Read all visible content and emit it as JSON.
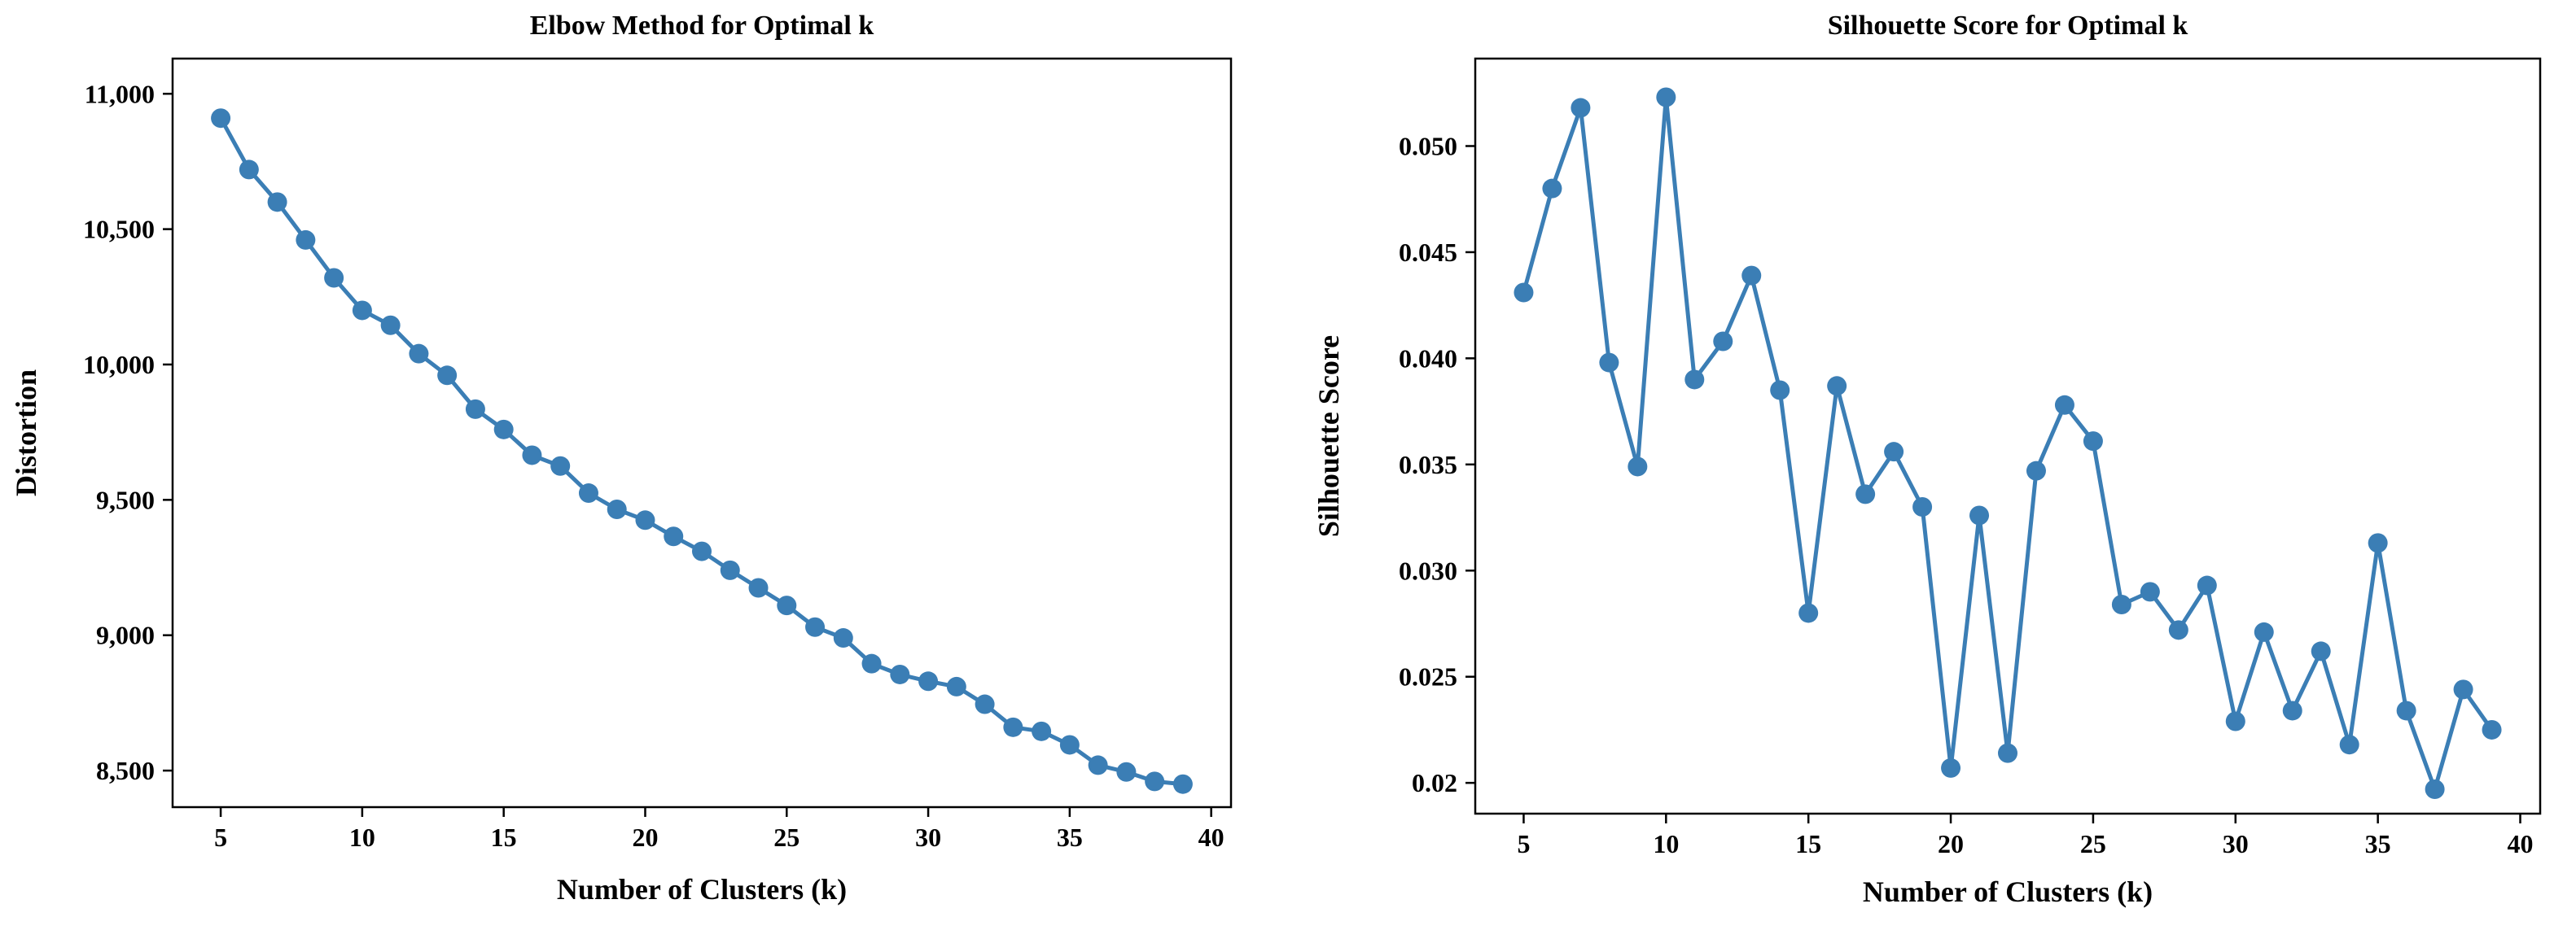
{
  "colors": {
    "series": "#3b7eb5",
    "axis": "#000000",
    "background": "#ffffff"
  },
  "chart_data": [
    {
      "type": "line",
      "title": "Elbow Method for Optimal k",
      "xlabel": "Number of Clusters (k)",
      "ylabel": "Distortion",
      "xlim": [
        3.3,
        40.7
      ],
      "ylim": [
        8365,
        11130
      ],
      "xticks": [
        5,
        10,
        15,
        20,
        25,
        30,
        35,
        40
      ],
      "xtick_labels": [
        "5",
        "10",
        "15",
        "20",
        "25",
        "30",
        "35",
        "40"
      ],
      "yticks": [
        8500,
        9000,
        9500,
        10000,
        10500,
        11000
      ],
      "ytick_labels": [
        "8,500",
        "9,000",
        "9,500",
        "10,000",
        "10,500",
        "11,000"
      ],
      "grid": false,
      "series": [
        {
          "name": "Distortion",
          "x": [
            5,
            6,
            7,
            8,
            9,
            10,
            11,
            12,
            13,
            14,
            15,
            16,
            17,
            18,
            19,
            20,
            21,
            22,
            23,
            24,
            25,
            26,
            27,
            28,
            29,
            30,
            31,
            32,
            33,
            34,
            35,
            36,
            37,
            38,
            39
          ],
          "values": [
            10910,
            10720,
            10600,
            10460,
            10320,
            10200,
            10145,
            10040,
            9960,
            9835,
            9760,
            9665,
            9625,
            9525,
            9465,
            9425,
            9365,
            9310,
            9240,
            9175,
            9110,
            9030,
            8990,
            8895,
            8855,
            8830,
            8810,
            8745,
            8660,
            8645,
            8595,
            8520,
            8495,
            8460,
            8450
          ]
        }
      ]
    },
    {
      "type": "line",
      "title": "Silhouette Score for Optimal k",
      "xlabel": "Number of Clusters (k)",
      "ylabel": "Silhouette Score",
      "xlim": [
        3.3,
        40.7
      ],
      "ylim": [
        0.01855,
        0.05412
      ],
      "xticks": [
        5,
        10,
        15,
        20,
        25,
        30,
        35,
        40
      ],
      "xtick_labels": [
        "5",
        "10",
        "15",
        "20",
        "25",
        "30",
        "35",
        "40"
      ],
      "yticks": [
        0.02,
        0.025,
        0.03,
        0.035,
        0.04,
        0.045,
        0.05
      ],
      "ytick_labels": [
        "0.02",
        "0.025",
        "0.030",
        "0.035",
        "0.040",
        "0.045",
        "0.050"
      ],
      "grid": false,
      "series": [
        {
          "name": "Silhouette Score",
          "x": [
            5,
            6,
            7,
            8,
            9,
            10,
            11,
            12,
            13,
            14,
            15,
            16,
            17,
            18,
            19,
            20,
            21,
            22,
            23,
            24,
            25,
            26,
            27,
            28,
            29,
            30,
            31,
            32,
            33,
            34,
            35,
            36,
            37,
            38,
            39
          ],
          "values": [
            0.0431,
            0.048,
            0.0518,
            0.0398,
            0.0349,
            0.0523,
            0.039,
            0.0408,
            0.0439,
            0.0385,
            0.028,
            0.0387,
            0.0336,
            0.0356,
            0.033,
            0.0207,
            0.0326,
            0.0214,
            0.0347,
            0.0378,
            0.0361,
            0.0284,
            0.029,
            0.0272,
            0.0293,
            0.0229,
            0.0271,
            0.0234,
            0.0262,
            0.0218,
            0.0313,
            0.0234,
            0.0197,
            0.0244,
            0.0225
          ]
        }
      ]
    }
  ]
}
